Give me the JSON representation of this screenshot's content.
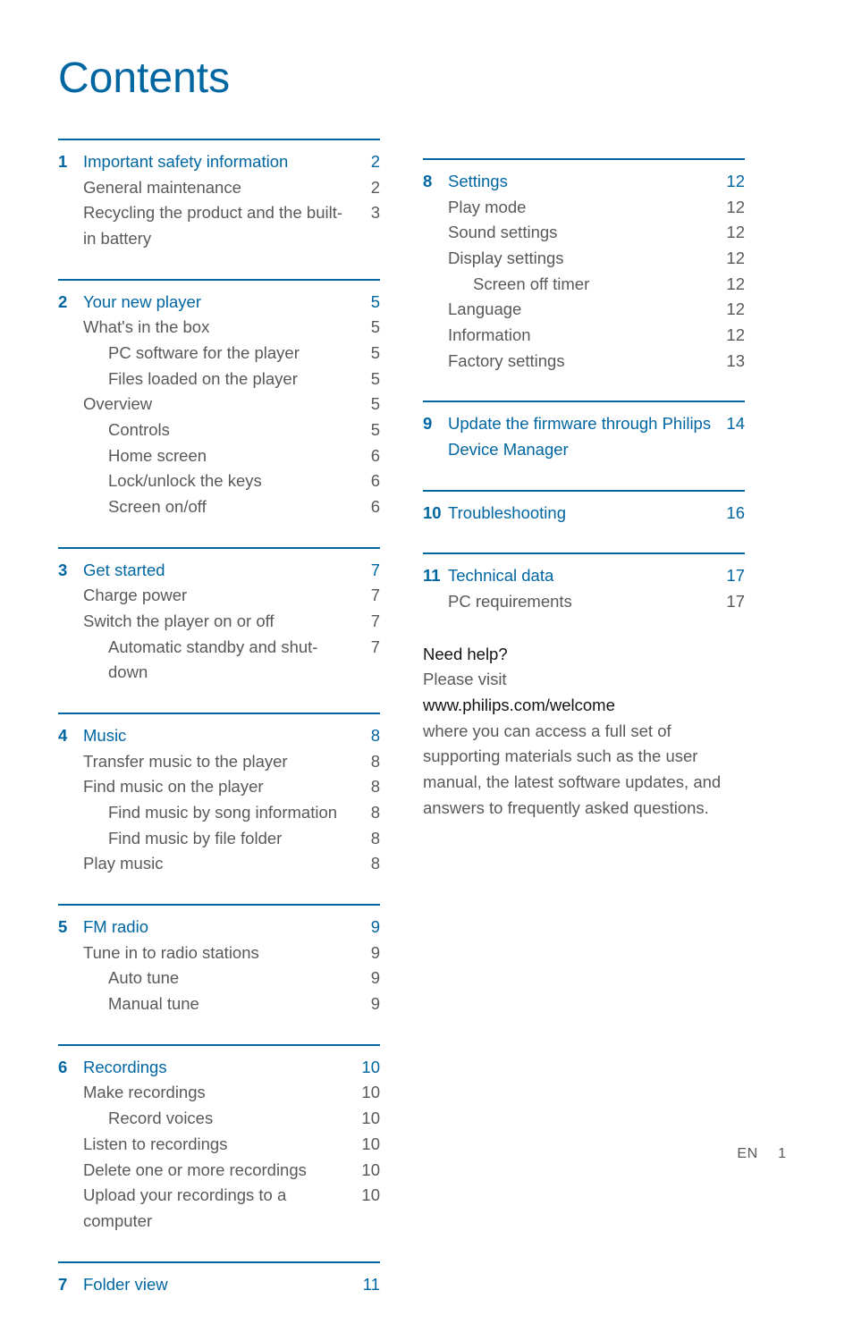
{
  "title": "Contents",
  "footer": {
    "lang": "EN",
    "page": "1"
  },
  "left": [
    {
      "num": "1",
      "head": "Important safety information",
      "head_page": "2",
      "items": [
        {
          "label": "General maintenance",
          "page": "2",
          "indent": 0
        },
        {
          "label": "Recycling the product and the built-in battery",
          "page": "3",
          "indent": 0
        }
      ]
    },
    {
      "num": "2",
      "head": "Your new player",
      "head_page": "5",
      "items": [
        {
          "label": "What's in the box",
          "page": "5",
          "indent": 0
        },
        {
          "label": "PC software for the player",
          "page": "5",
          "indent": 1
        },
        {
          "label": "Files loaded on the player",
          "page": "5",
          "indent": 1
        },
        {
          "label": "Overview",
          "page": "5",
          "indent": 0
        },
        {
          "label": "Controls",
          "page": "5",
          "indent": 1
        },
        {
          "label": "Home screen",
          "page": "6",
          "indent": 1
        },
        {
          "label": "Lock/unlock the keys",
          "page": "6",
          "indent": 1
        },
        {
          "label": "Screen on/off",
          "page": "6",
          "indent": 1
        }
      ]
    },
    {
      "num": "3",
      "head": "Get started",
      "head_page": "7",
      "items": [
        {
          "label": "Charge power",
          "page": "7",
          "indent": 0
        },
        {
          "label": "Switch the player on or off",
          "page": "7",
          "indent": 0
        },
        {
          "label": "Automatic standby and shut-down",
          "page": "7",
          "indent": 1
        }
      ]
    },
    {
      "num": "4",
      "head": "Music",
      "head_page": "8",
      "items": [
        {
          "label": "Transfer music to the player",
          "page": "8",
          "indent": 0
        },
        {
          "label": "Find music on the player",
          "page": "8",
          "indent": 0
        },
        {
          "label": "Find music by song information",
          "page": "8",
          "indent": 1
        },
        {
          "label": "Find music by file folder",
          "page": "8",
          "indent": 1
        },
        {
          "label": "Play music",
          "page": "8",
          "indent": 0
        }
      ]
    },
    {
      "num": "5",
      "head": "FM radio",
      "head_page": "9",
      "items": [
        {
          "label": "Tune in to radio stations",
          "page": "9",
          "indent": 0
        },
        {
          "label": "Auto tune",
          "page": "9",
          "indent": 1
        },
        {
          "label": "Manual tune",
          "page": "9",
          "indent": 1
        }
      ]
    },
    {
      "num": "6",
      "head": "Recordings",
      "head_page": "10",
      "items": [
        {
          "label": "Make recordings",
          "page": "10",
          "indent": 0
        },
        {
          "label": "Record voices",
          "page": "10",
          "indent": 1
        },
        {
          "label": "Listen to recordings",
          "page": "10",
          "indent": 0
        },
        {
          "label": "Delete one or more recordings",
          "page": "10",
          "indent": 0
        },
        {
          "label": "Upload your recordings to a computer",
          "page": "10",
          "indent": 0
        }
      ]
    },
    {
      "num": "7",
      "head": "Folder view",
      "head_page": "11",
      "items": []
    }
  ],
  "right": [
    {
      "num": "8",
      "head": "Settings",
      "head_page": "12",
      "items": [
        {
          "label": "Play mode",
          "page": "12",
          "indent": 0
        },
        {
          "label": "Sound settings",
          "page": "12",
          "indent": 0
        },
        {
          "label": "Display settings",
          "page": "12",
          "indent": 0
        },
        {
          "label": "Screen off timer",
          "page": "12",
          "indent": 1
        },
        {
          "label": "Language",
          "page": "12",
          "indent": 0
        },
        {
          "label": "Information",
          "page": "12",
          "indent": 0
        },
        {
          "label": "Factory settings",
          "page": "13",
          "indent": 0
        }
      ]
    },
    {
      "num": "9",
      "head": "Update the firmware through Philips Device Manager",
      "head_page": "14",
      "items": []
    },
    {
      "num": "10",
      "head": "Troubleshooting",
      "head_page": "16",
      "items": []
    },
    {
      "num": "11",
      "head": "Technical data",
      "head_page": "17",
      "items": [
        {
          "label": "PC requirements",
          "page": "17",
          "indent": 0
        }
      ]
    }
  ],
  "help": {
    "title": "Need help?",
    "line1": "Please visit",
    "url": "www.philips.com/welcome",
    "body": "where you can access a full set of supporting materials such as the user manual, the latest software updates, and answers to frequently asked questions."
  }
}
